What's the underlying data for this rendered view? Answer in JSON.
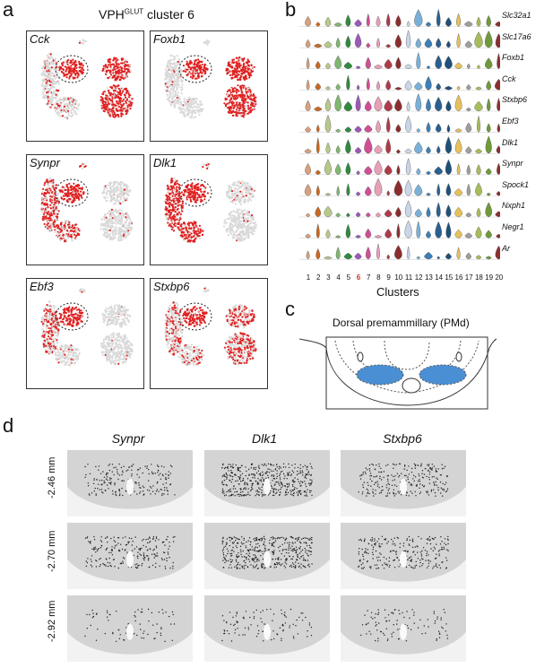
{
  "panels": {
    "a": "a",
    "b": "b",
    "c": "c",
    "d": "d"
  },
  "panel_a": {
    "title_main": "VPH",
    "title_sup": "GLUT",
    "title_rest": " cluster 6",
    "genes": [
      "Cck",
      "Foxb1",
      "Synpr",
      "Dlk1",
      "Ebf3",
      "Stxbp6"
    ]
  },
  "panel_b": {
    "genes": [
      "Slc32a1",
      "Slc17a6",
      "Foxb1",
      "Cck",
      "Stxbp6",
      "Ebf3",
      "Dlk1",
      "Synpr",
      "Spock1",
      "Nxph1",
      "Negr1",
      "Ar"
    ],
    "clusters": [
      "1",
      "2",
      "3",
      "4",
      "5",
      "6",
      "7",
      "8",
      "9",
      "10",
      "11",
      "12",
      "13",
      "14",
      "15",
      "16",
      "17",
      "18",
      "19",
      "20"
    ],
    "highlight_cluster": "6",
    "xlabel": "Clusters",
    "cluster_colors": [
      "#d8a07c",
      "#c9681f",
      "#b7c98a",
      "#7fb86e",
      "#2f8a3e",
      "#9b59b6",
      "#d04f94",
      "#e8a0b8",
      "#b03a48",
      "#8b2d2d",
      "#c9d6e8",
      "#7ab0d8",
      "#3b7fb8",
      "#2b5f8f",
      "#1f4f7a",
      "#e6c15a",
      "#9e9e9e",
      "#a6bd5a",
      "#6f9a3a",
      "#8a3030"
    ],
    "highlight_color": "#c0392b"
  },
  "panel_c": {
    "title": "Dorsal premammillary (PMd)",
    "region_color": "#4a8fd4"
  },
  "panel_d": {
    "genes": [
      "Synpr",
      "Dlk1",
      "Stxbp6"
    ],
    "depths": [
      "-2.46 mm",
      "-2.70 mm",
      "-2.92 mm"
    ]
  }
}
